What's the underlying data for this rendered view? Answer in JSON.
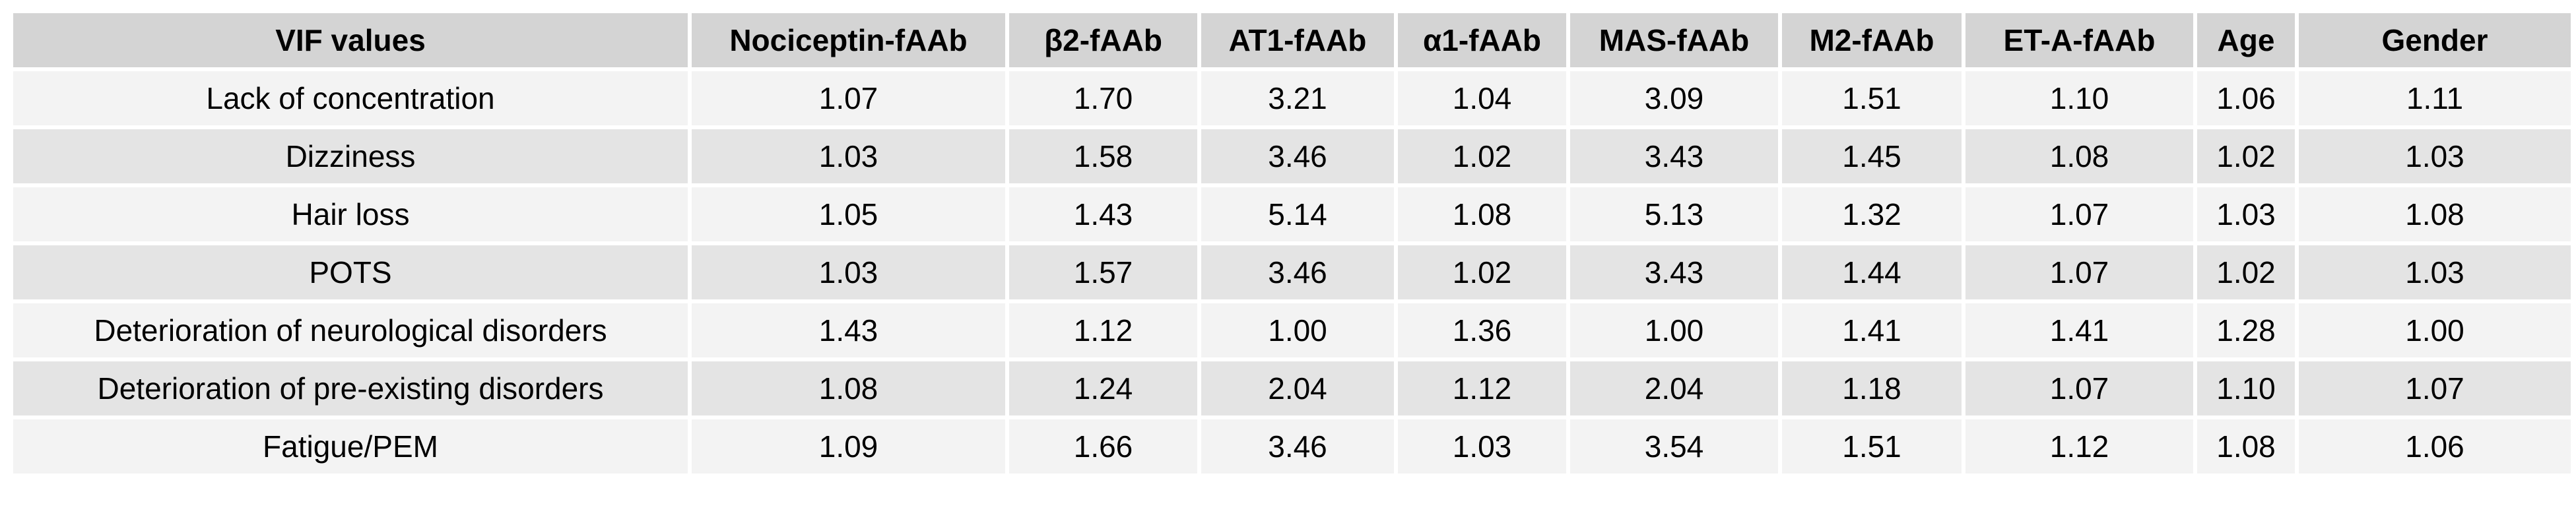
{
  "table": {
    "headers": [
      "VIF values",
      "Nociceptin-fAAb",
      "β2-fAAb",
      "AT1-fAAb",
      "α1-fAAb",
      "MAS-fAAb",
      "M2-fAAb",
      "ET-A-fAAb",
      "Age",
      "Gender"
    ],
    "rows": [
      [
        "Lack of concentration",
        "1.07",
        "1.70",
        "3.21",
        "1.04",
        "3.09",
        "1.51",
        "1.10",
        "1.06",
        "1.11"
      ],
      [
        "Dizziness",
        "1.03",
        "1.58",
        "3.46",
        "1.02",
        "3.43",
        "1.45",
        "1.08",
        "1.02",
        "1.03"
      ],
      [
        "Hair loss",
        "1.05",
        "1.43",
        "5.14",
        "1.08",
        "5.13",
        "1.32",
        "1.07",
        "1.03",
        "1.08"
      ],
      [
        "POTS",
        "1.03",
        "1.57",
        "3.46",
        "1.02",
        "3.43",
        "1.44",
        "1.07",
        "1.02",
        "1.03"
      ],
      [
        "Deterioration of neurological disorders",
        "1.43",
        "1.12",
        "1.00",
        "1.36",
        "1.00",
        "1.41",
        "1.41",
        "1.28",
        "1.00"
      ],
      [
        "Deterioration of pre-existing disorders",
        "1.08",
        "1.24",
        "2.04",
        "1.12",
        "2.04",
        "1.18",
        "1.07",
        "1.10",
        "1.07"
      ],
      [
        "Fatigue/PEM",
        "1.09",
        "1.66",
        "3.46",
        "1.03",
        "3.54",
        "1.51",
        "1.12",
        "1.08",
        "1.06"
      ]
    ]
  }
}
